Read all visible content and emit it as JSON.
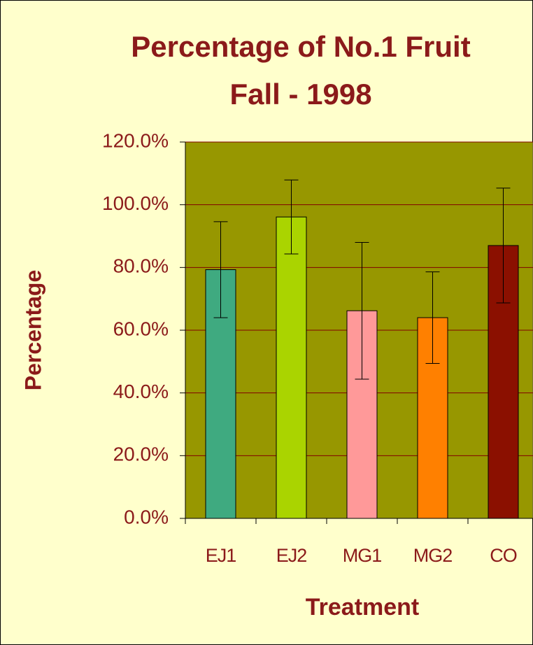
{
  "chart_data": {
    "type": "bar",
    "title": [
      "Percentage of No.1 Fruit",
      "Fall - 1998"
    ],
    "x_label": "Treatment",
    "y_label": "Percentage",
    "categories": [
      "EJ1",
      "EJ2",
      "MG1",
      "MG2",
      "CO"
    ],
    "values": [
      79.3,
      96.1,
      66.2,
      64.0,
      87.0
    ],
    "errors": [
      15.3,
      11.8,
      21.8,
      14.6,
      18.3
    ],
    "colors": [
      "#3faa80",
      "#aad400",
      "#ff9999",
      "#ff8000",
      "#8b1000"
    ],
    "ylim": [
      0,
      120
    ],
    "yticks": [
      {
        "value": 0,
        "label": "0.0%"
      },
      {
        "value": 20,
        "label": "20.0%"
      },
      {
        "value": 40,
        "label": "40.0%"
      },
      {
        "value": 60,
        "label": "60.0%"
      },
      {
        "value": 80,
        "label": "80.0%"
      },
      {
        "value": 100,
        "label": "100.0%"
      },
      {
        "value": 120,
        "label": "120.0%"
      }
    ],
    "grid": true
  }
}
